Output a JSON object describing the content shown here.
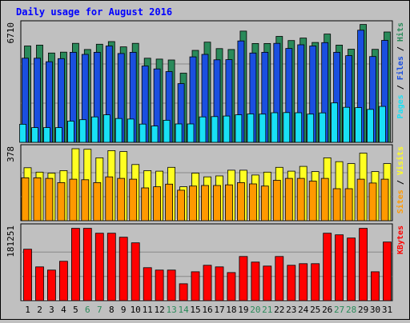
{
  "title": "Daily usage for August 2016",
  "colors": {
    "background": "#c0c0c0",
    "title": "#0000ff",
    "hits": "#2a8a5a",
    "files": "#1a4fe0",
    "pages": "#19e0f5",
    "visits": "#ffff22",
    "sites": "#ff9900",
    "kbytes": "#ff0000",
    "weekend_label": "#2a8a5a",
    "weekday_label": "#000000"
  },
  "chart_data": [
    {
      "type": "bar",
      "panel": "top",
      "scale_label": "6710",
      "ylim": [
        0,
        6710
      ],
      "right_labels": [
        {
          "text": "Pages",
          "color": "#19e0f5"
        },
        {
          "text": " / ",
          "color": "#000000"
        },
        {
          "text": "Files",
          "color": "#1a4fe0"
        },
        {
          "text": " / ",
          "color": "#000000"
        },
        {
          "text": "Hits",
          "color": "#2a8a5a"
        }
      ],
      "categories": [
        "1",
        "2",
        "3",
        "4",
        "5",
        "6",
        "7",
        "8",
        "9",
        "10",
        "11",
        "12",
        "13",
        "14",
        "15",
        "16",
        "17",
        "18",
        "19",
        "20",
        "21",
        "22",
        "23",
        "24",
        "25",
        "26",
        "27",
        "28",
        "29",
        "30",
        "31"
      ],
      "weekend": [
        "6",
        "7",
        "13",
        "14",
        "20",
        "21",
        "27",
        "28"
      ],
      "series": [
        {
          "name": "Hits",
          "values": [
            5500,
            5550,
            5100,
            5150,
            5650,
            5300,
            5600,
            5750,
            5450,
            5650,
            4800,
            4750,
            4700,
            3950,
            5250,
            5720,
            5350,
            5300,
            6350,
            5640,
            5640,
            6050,
            5810,
            5950,
            5700,
            6180,
            5550,
            5320,
            6730,
            5310,
            6300
          ]
        },
        {
          "name": "Files",
          "values": [
            4800,
            4800,
            4600,
            4780,
            5140,
            5020,
            5140,
            5500,
            5070,
            5140,
            4360,
            4190,
            4040,
            3350,
            4880,
            5020,
            4710,
            4720,
            5790,
            5100,
            5140,
            5650,
            5360,
            5570,
            5500,
            5690,
            5140,
            4950,
            6400,
            4900,
            5820
          ]
        },
        {
          "name": "Pages",
          "values": [
            1030,
            840,
            840,
            840,
            1210,
            1290,
            1450,
            1570,
            1360,
            1330,
            1040,
            930,
            1260,
            1050,
            1050,
            1450,
            1470,
            1500,
            1570,
            1620,
            1610,
            1690,
            1700,
            1690,
            1610,
            1680,
            2250,
            2000,
            1980,
            1880,
            2050
          ]
        }
      ]
    },
    {
      "type": "bar",
      "panel": "middle",
      "scale_label": "378",
      "ylim": [
        0,
        378
      ],
      "right_labels": [
        {
          "text": "Sites",
          "color": "#ff9900"
        },
        {
          "text": " / ",
          "color": "#000000"
        },
        {
          "text": "Visits",
          "color": "#ffff22"
        }
      ],
      "categories": [
        "1",
        "2",
        "3",
        "4",
        "5",
        "6",
        "7",
        "8",
        "9",
        "10",
        "11",
        "12",
        "13",
        "14",
        "15",
        "16",
        "17",
        "18",
        "19",
        "20",
        "21",
        "22",
        "23",
        "24",
        "25",
        "26",
        "27",
        "28",
        "29",
        "30",
        "31"
      ],
      "series": [
        {
          "name": "Visits",
          "values": [
            278,
            255,
            250,
            263,
            378,
            375,
            330,
            368,
            363,
            295,
            263,
            260,
            280,
            178,
            250,
            230,
            235,
            265,
            265,
            240,
            255,
            280,
            260,
            285,
            258,
            330,
            310,
            300,
            355,
            258,
            300
          ]
        },
        {
          "name": "Sites",
          "values": [
            225,
            225,
            222,
            200,
            218,
            215,
            200,
            230,
            222,
            218,
            172,
            178,
            192,
            160,
            182,
            185,
            185,
            188,
            200,
            193,
            182,
            212,
            222,
            222,
            208,
            222,
            168,
            168,
            218,
            198,
            218
          ]
        }
      ]
    },
    {
      "type": "bar",
      "panel": "bottom",
      "scale_label": "181251",
      "ylim": [
        0,
        181251
      ],
      "right_labels": [
        {
          "text": "KBytes",
          "color": "#ff0000"
        }
      ],
      "categories": [
        "1",
        "2",
        "3",
        "4",
        "5",
        "6",
        "7",
        "8",
        "9",
        "10",
        "11",
        "12",
        "13",
        "14",
        "15",
        "16",
        "17",
        "18",
        "19",
        "20",
        "21",
        "22",
        "23",
        "24",
        "25",
        "26",
        "27",
        "28",
        "29",
        "30",
        "31"
      ],
      "series": [
        {
          "name": "KBytes",
          "values": [
            128000,
            84000,
            76000,
            98000,
            180000,
            180000,
            168000,
            168000,
            158000,
            144000,
            82000,
            76000,
            76000,
            42000,
            72000,
            88000,
            84000,
            70000,
            110000,
            96000,
            86000,
            110000,
            88000,
            92000,
            92000,
            168000,
            164000,
            156000,
            180000,
            72000,
            146000
          ]
        }
      ]
    }
  ]
}
